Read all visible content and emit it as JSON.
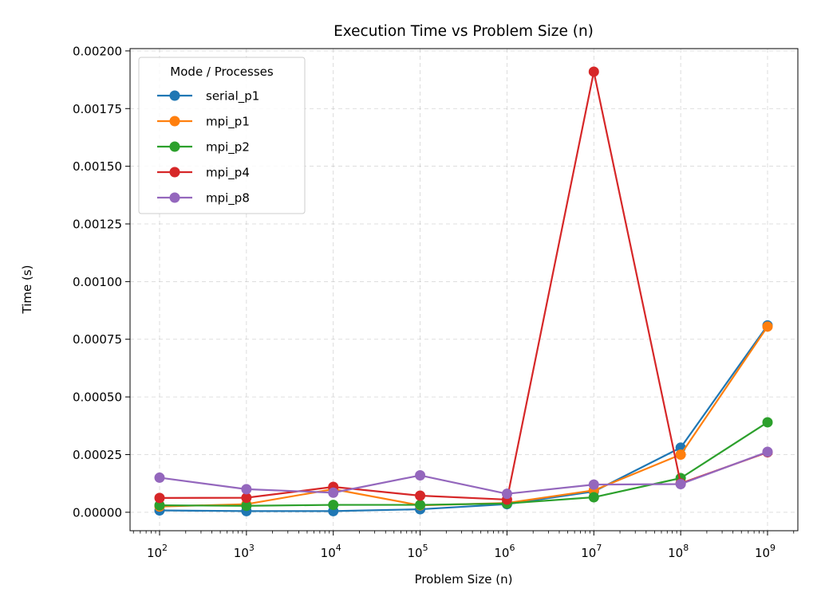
{
  "chart_data": {
    "type": "line",
    "title": "Execution Time vs Problem Size (n)",
    "xlabel": "Problem Size (n)",
    "ylabel": "Time (s)",
    "x_scale": "log",
    "x": [
      100,
      1000,
      10000,
      100000,
      1000000,
      10000000,
      100000000,
      1000000000
    ],
    "x_tick_labels": [
      {
        "base": "10",
        "exp": "2"
      },
      {
        "base": "10",
        "exp": "3"
      },
      {
        "base": "10",
        "exp": "4"
      },
      {
        "base": "10",
        "exp": "5"
      },
      {
        "base": "10",
        "exp": "6"
      },
      {
        "base": "10",
        "exp": "7"
      },
      {
        "base": "10",
        "exp": "8"
      },
      {
        "base": "10",
        "exp": "9"
      }
    ],
    "y_ticks": [
      0,
      0.00025,
      0.0005,
      0.00075,
      0.001,
      0.00125,
      0.0015,
      0.00175,
      0.002
    ],
    "y_tick_labels": [
      "0.00000",
      "0.00025",
      "0.00050",
      "0.00075",
      "0.00100",
      "0.00125",
      "0.00150",
      "0.00175",
      "0.00200"
    ],
    "ylim": [
      -8e-05,
      0.00201
    ],
    "grid": true,
    "legend": {
      "title": "Mode / Processes",
      "position": "top-left"
    },
    "series": [
      {
        "name": "serial_p1",
        "color": "#1f77b4",
        "values": [
          8e-06,
          5e-06,
          5e-06,
          1.3e-05,
          3.5e-05,
          9e-05,
          0.00028,
          0.00081
        ]
      },
      {
        "name": "mpi_p1",
        "color": "#ff7f0e",
        "values": [
          2.5e-05,
          3.5e-05,
          0.0001,
          3e-05,
          4e-05,
          9.5e-05,
          0.00025,
          0.000805
        ]
      },
      {
        "name": "mpi_p2",
        "color": "#2ca02c",
        "values": [
          3e-05,
          2.8e-05,
          3.2e-05,
          3.2e-05,
          3.8e-05,
          6.5e-05,
          0.000148,
          0.00039
        ]
      },
      {
        "name": "mpi_p4",
        "color": "#d62728",
        "values": [
          6.2e-05,
          6.3e-05,
          0.00011,
          7.2e-05,
          5.5e-05,
          0.00191,
          0.000125,
          0.00026
        ]
      },
      {
        "name": "mpi_p8",
        "color": "#9467bd",
        "values": [
          0.00015,
          0.0001,
          8.5e-05,
          0.00016,
          8e-05,
          0.00012,
          0.000122,
          0.000262
        ]
      }
    ]
  }
}
